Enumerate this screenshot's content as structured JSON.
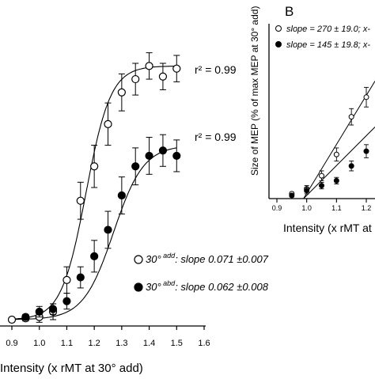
{
  "chart_data": [
    {
      "id": "A",
      "type": "scatter",
      "xlabel": "Intensity (x rMT at 30° add)",
      "ylabel": "",
      "xlim": [
        0.9,
        1.6
      ],
      "ylim": [
        0,
        100
      ],
      "xticks": [
        "0.9",
        "1.0",
        "1.1",
        "1.2",
        "1.3",
        "1.4",
        "1.5",
        "1.6"
      ],
      "fit": "sigmoid",
      "series": [
        {
          "name": "30° add: slope 0.071 ±0.007",
          "legend_super": "add",
          "legend_rest": ": slope 0.071 ±0.007",
          "marker": "open-circle",
          "r2": "r² = 0.99",
          "x": [
            0.9,
            0.95,
            1.0,
            1.05,
            1.1,
            1.15,
            1.2,
            1.25,
            1.3,
            1.35,
            1.4,
            1.45,
            1.5
          ],
          "y": [
            0,
            0.5,
            1,
            3,
            15,
            45,
            58,
            74,
            86,
            91,
            96,
            92,
            95
          ],
          "err": [
            0,
            1,
            2,
            3,
            5,
            7,
            8,
            8,
            7,
            6,
            5,
            5,
            5
          ],
          "x0": 1.17,
          "k": 0.045,
          "top": 96
        },
        {
          "name": "30° abd: slope 0.062 ±0.008",
          "legend_super": "abd",
          "legend_rest": ": slope 0.062 ±0.008",
          "marker": "filled-circle",
          "r2": "r² = 0.99",
          "x": [
            0.95,
            1.0,
            1.05,
            1.1,
            1.15,
            1.2,
            1.25,
            1.3,
            1.35,
            1.4,
            1.45,
            1.5
          ],
          "y": [
            1,
            3,
            4,
            7,
            16,
            24,
            34,
            47,
            58,
            62,
            64,
            62
          ],
          "err": [
            1,
            2,
            2,
            3,
            4,
            6,
            7,
            7,
            7,
            7,
            6,
            6
          ],
          "x0": 1.27,
          "k": 0.055,
          "top": 66
        }
      ]
    },
    {
      "id": "B",
      "type": "scatter",
      "panel_label": "B",
      "xlabel": "Intensity (x rMT at",
      "ylabel": "Size of MEP (% of max MEP at 30° add)",
      "xlim": [
        0.9,
        1.22
      ],
      "ylim": [
        0,
        100
      ],
      "xticks": [
        "0.9",
        "1.0",
        "1.1",
        "1.2"
      ],
      "fit": "linear",
      "series": [
        {
          "name": "slope = 270 ± 19.0; x-",
          "marker": "open-circle",
          "x": [
            0.95,
            1.0,
            1.05,
            1.1,
            1.15,
            1.2
          ],
          "y": [
            1,
            4,
            12,
            25,
            48,
            60
          ],
          "err": [
            1,
            2,
            3,
            4,
            5,
            6
          ]
        },
        {
          "name": "slope = 145 ± 19.8; x-",
          "marker": "filled-circle",
          "x": [
            0.95,
            1.0,
            1.05,
            1.1,
            1.15,
            1.2
          ],
          "y": [
            0,
            3,
            6,
            9,
            18,
            27
          ],
          "err": [
            1,
            2,
            2,
            2,
            3,
            4
          ]
        }
      ]
    }
  ]
}
